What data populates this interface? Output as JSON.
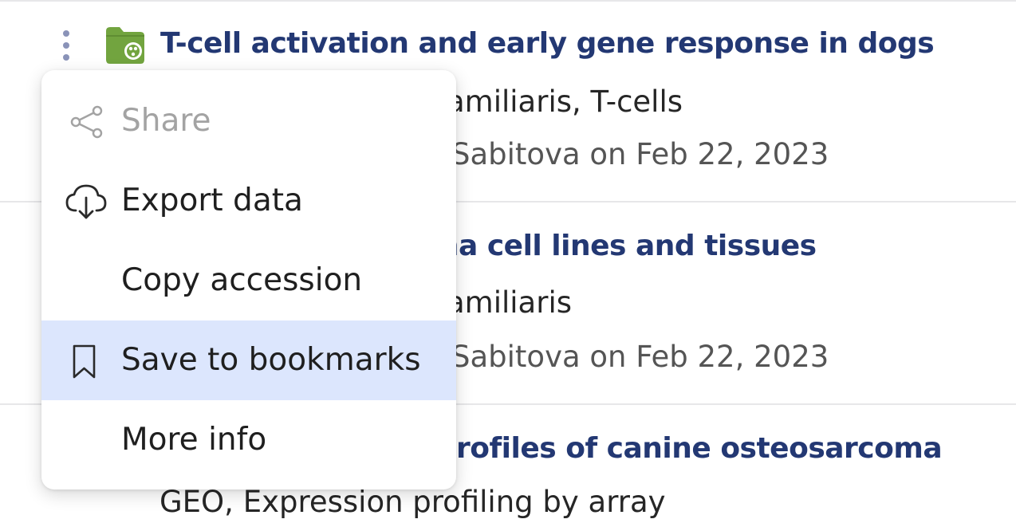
{
  "results": [
    {
      "title": "T-cell activation and early gene response in dogs",
      "organism_text": "amiliaris, T-cells",
      "submitted_text": "Sabitova on Feb 22, 2023"
    },
    {
      "title": "ma cell lines and tissues",
      "organism_text": "amiliaris",
      "submitted_text": "Sabitova on Feb 22, 2023"
    },
    {
      "title": "rofiles of canine osteosarcoma",
      "subtitle_text": "GEO, Expression profiling by array"
    }
  ],
  "context_menu": {
    "items": [
      {
        "label": "Share",
        "icon": "share-icon",
        "state": "disabled"
      },
      {
        "label": "Export data",
        "icon": "cloud-download-icon",
        "state": "normal"
      },
      {
        "label": "Copy accession",
        "icon": "",
        "state": "normal"
      },
      {
        "label": "Save to bookmarks",
        "icon": "bookmark-icon",
        "state": "highlighted"
      },
      {
        "label": "More info",
        "icon": "",
        "state": "normal"
      }
    ]
  },
  "colors": {
    "title_link": "#233873",
    "menu_highlight": "#dce6fd",
    "folder_icon": "#72a43f",
    "kebab_dots": "#8a93b8"
  }
}
